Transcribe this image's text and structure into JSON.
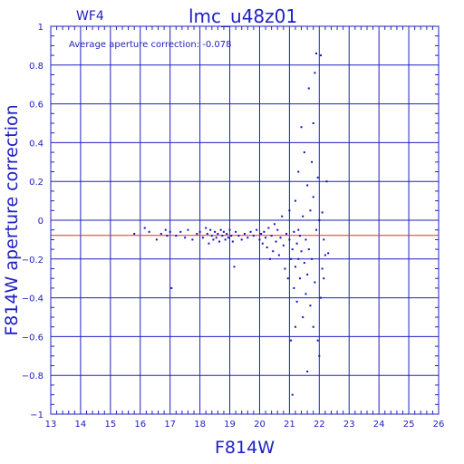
{
  "chart_data": {
    "type": "scatter",
    "title": "lmc_u48z01",
    "chip_label": "WF4",
    "annotation": "Average aperture correction: -0.078",
    "xlabel": "F814W",
    "ylabel": "F814W aperture correction",
    "xlim": [
      13,
      26
    ],
    "ylim": [
      -1,
      1
    ],
    "x_ticks": [
      13,
      14,
      15,
      16,
      17,
      18,
      19,
      20,
      21,
      22,
      23,
      24,
      25,
      26
    ],
    "y_ticks": [
      -1,
      -0.8,
      -0.6,
      -0.4,
      -0.2,
      0,
      0.2,
      0.4,
      0.6,
      0.8,
      1
    ],
    "x_tick_labels": [
      "13",
      "14",
      "15",
      "16",
      "17",
      "18",
      "19",
      "20",
      "21",
      "22",
      "23",
      "24",
      "25",
      "26"
    ],
    "y_tick_labels": [
      "−1",
      "−0.8",
      "−0.6",
      "−0.4",
      "−0.2",
      "0",
      "0.2",
      "0.4",
      "0.6",
      "0.8",
      "1"
    ],
    "grid": true,
    "reference_line": {
      "y": -0.078,
      "color": "#e03030"
    },
    "point_color": "#1010c8",
    "axis_color": "#2020c0",
    "points": [
      [
        15.8,
        -0.07
      ],
      [
        16.15,
        -0.04
      ],
      [
        16.3,
        -0.06
      ],
      [
        16.55,
        -0.1
      ],
      [
        16.7,
        -0.07
      ],
      [
        16.85,
        -0.05
      ],
      [
        16.9,
        -0.08
      ],
      [
        17.0,
        -0.06
      ],
      [
        17.05,
        -0.35
      ],
      [
        17.2,
        -0.08
      ],
      [
        17.35,
        -0.06
      ],
      [
        17.5,
        -0.09
      ],
      [
        17.6,
        -0.05
      ],
      [
        17.75,
        -0.1
      ],
      [
        17.9,
        -0.07
      ],
      [
        18.0,
        -0.06
      ],
      [
        18.1,
        -0.09
      ],
      [
        18.2,
        -0.04
      ],
      [
        18.25,
        -0.07
      ],
      [
        18.3,
        -0.12
      ],
      [
        18.35,
        -0.05
      ],
      [
        18.4,
        -0.08
      ],
      [
        18.45,
        -0.1
      ],
      [
        18.5,
        -0.06
      ],
      [
        18.55,
        -0.09
      ],
      [
        18.6,
        -0.07
      ],
      [
        18.65,
        -0.11
      ],
      [
        18.7,
        -0.05
      ],
      [
        18.75,
        -0.08
      ],
      [
        18.8,
        -0.06
      ],
      [
        18.85,
        -0.1
      ],
      [
        18.9,
        -0.07
      ],
      [
        18.95,
        -0.09
      ],
      [
        19.0,
        -0.05
      ],
      [
        19.05,
        -0.08
      ],
      [
        19.1,
        -0.11
      ],
      [
        19.15,
        -0.24
      ],
      [
        19.2,
        -0.06
      ],
      [
        19.3,
        -0.08
      ],
      [
        19.4,
        -0.1
      ],
      [
        19.5,
        -0.07
      ],
      [
        19.6,
        -0.09
      ],
      [
        19.7,
        -0.06
      ],
      [
        19.8,
        -0.08
      ],
      [
        19.9,
        -0.05
      ],
      [
        20.0,
        -0.1
      ],
      [
        20.05,
        -0.07
      ],
      [
        20.1,
        -0.12
      ],
      [
        20.15,
        -0.06
      ],
      [
        20.2,
        -0.09
      ],
      [
        20.25,
        -0.14
      ],
      [
        20.3,
        -0.04
      ],
      [
        20.35,
        -0.2
      ],
      [
        20.4,
        -0.08
      ],
      [
        20.45,
        -0.16
      ],
      [
        20.5,
        -0.02
      ],
      [
        20.55,
        -0.11
      ],
      [
        20.6,
        -0.05
      ],
      [
        20.65,
        -0.18
      ],
      [
        20.7,
        -0.09
      ],
      [
        20.75,
        0.02
      ],
      [
        20.8,
        -0.13
      ],
      [
        20.85,
        -0.25
      ],
      [
        20.9,
        -0.07
      ],
      [
        20.95,
        -0.3
      ],
      [
        21.0,
        -0.1
      ],
      [
        21.0,
        0.05
      ],
      [
        21.05,
        -0.2
      ],
      [
        21.05,
        -0.62
      ],
      [
        21.1,
        -0.15
      ],
      [
        21.1,
        -0.9
      ],
      [
        21.15,
        -0.06
      ],
      [
        21.15,
        -0.35
      ],
      [
        21.2,
        -0.24
      ],
      [
        21.2,
        0.1
      ],
      [
        21.25,
        -0.12
      ],
      [
        21.25,
        -0.42
      ],
      [
        21.3,
        -0.2
      ],
      [
        21.3,
        0.25
      ],
      [
        21.35,
        -0.08
      ],
      [
        21.35,
        -0.3
      ],
      [
        21.4,
        -0.16
      ],
      [
        21.4,
        0.48
      ],
      [
        21.45,
        -0.5
      ],
      [
        21.45,
        0.02
      ],
      [
        21.5,
        -0.22
      ],
      [
        21.5,
        0.35
      ],
      [
        21.55,
        -0.1
      ],
      [
        21.55,
        -0.38
      ],
      [
        21.6,
        -0.28
      ],
      [
        21.6,
        0.18
      ],
      [
        21.65,
        0.68
      ],
      [
        21.65,
        -0.15
      ],
      [
        21.7,
        -0.44
      ],
      [
        21.7,
        0.05
      ],
      [
        21.75,
        -0.2
      ],
      [
        21.75,
        0.3
      ],
      [
        21.8,
        -0.55
      ],
      [
        21.8,
        0.12
      ],
      [
        21.85,
        0.76
      ],
      [
        21.85,
        -0.32
      ],
      [
        21.9,
        0.86
      ],
      [
        21.9,
        -0.05
      ],
      [
        21.95,
        -0.62
      ],
      [
        21.95,
        0.22
      ],
      [
        22.0,
        -0.7
      ],
      [
        22.0,
        0.0
      ],
      [
        22.05,
        0.85
      ],
      [
        22.05,
        -0.4
      ],
      [
        22.1,
        -0.25
      ],
      [
        22.1,
        0.04
      ],
      [
        22.15,
        -0.1
      ],
      [
        22.15,
        -0.3
      ],
      [
        22.2,
        -0.18
      ],
      [
        22.25,
        0.2
      ],
      [
        22.3,
        -0.17
      ],
      [
        21.6,
        -0.78
      ],
      [
        21.3,
        -0.05
      ],
      [
        21.8,
        0.5
      ],
      [
        21.2,
        -0.55
      ]
    ]
  }
}
